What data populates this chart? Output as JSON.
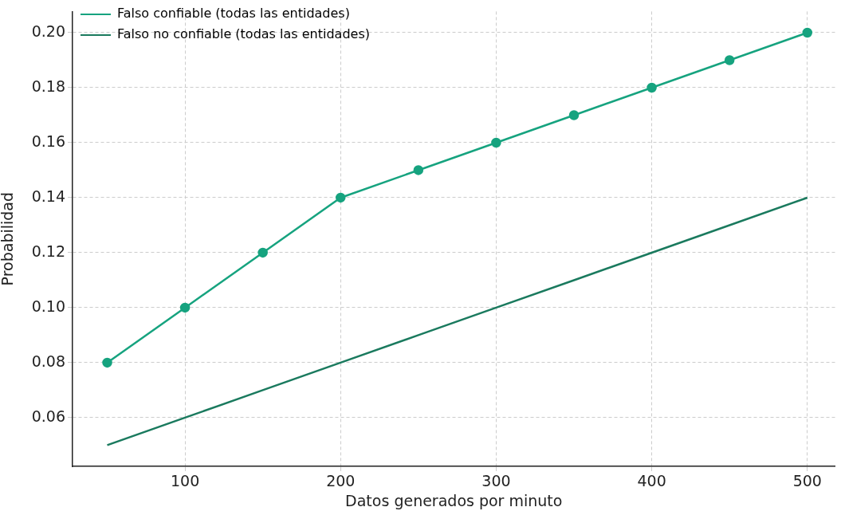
{
  "chart_data": {
    "type": "line",
    "xlabel": "Datos generados por minuto",
    "ylabel": "Probabilidad",
    "x": [
      50,
      100,
      150,
      200,
      250,
      300,
      350,
      400,
      450,
      500
    ],
    "series": [
      {
        "name": "Falso confiable (todas las entidades)",
        "color": "#16a37f",
        "marker": "circle",
        "values": [
          0.08,
          0.1,
          0.12,
          0.14,
          0.15,
          0.16,
          0.17,
          0.18,
          0.19,
          0.2
        ]
      },
      {
        "name": "Falso no confiable (todas las entidades)",
        "color": "#1a7a5e",
        "marker": "none",
        "values": [
          0.05,
          0.06,
          0.07,
          0.08,
          0.09,
          0.1,
          0.11,
          0.12,
          0.13,
          0.14
        ]
      }
    ],
    "xlim": [
      27.7,
      517.8
    ],
    "xticks": [
      100,
      200,
      300,
      400,
      500
    ],
    "ylim": [
      0.0423,
      0.2077
    ],
    "yticks": [
      {
        "value": 0.06,
        "label": "0.06"
      },
      {
        "value": 0.08,
        "label": "0.08"
      },
      {
        "value": 0.1,
        "label": "0.10"
      },
      {
        "value": 0.12,
        "label": "0.12"
      },
      {
        "value": 0.14,
        "label": "0.14"
      },
      {
        "value": 0.16,
        "label": "0.16"
      },
      {
        "value": 0.18,
        "label": "0.18"
      },
      {
        "value": 0.2,
        "label": "0.20"
      }
    ],
    "grid": true,
    "legend": "top left"
  }
}
